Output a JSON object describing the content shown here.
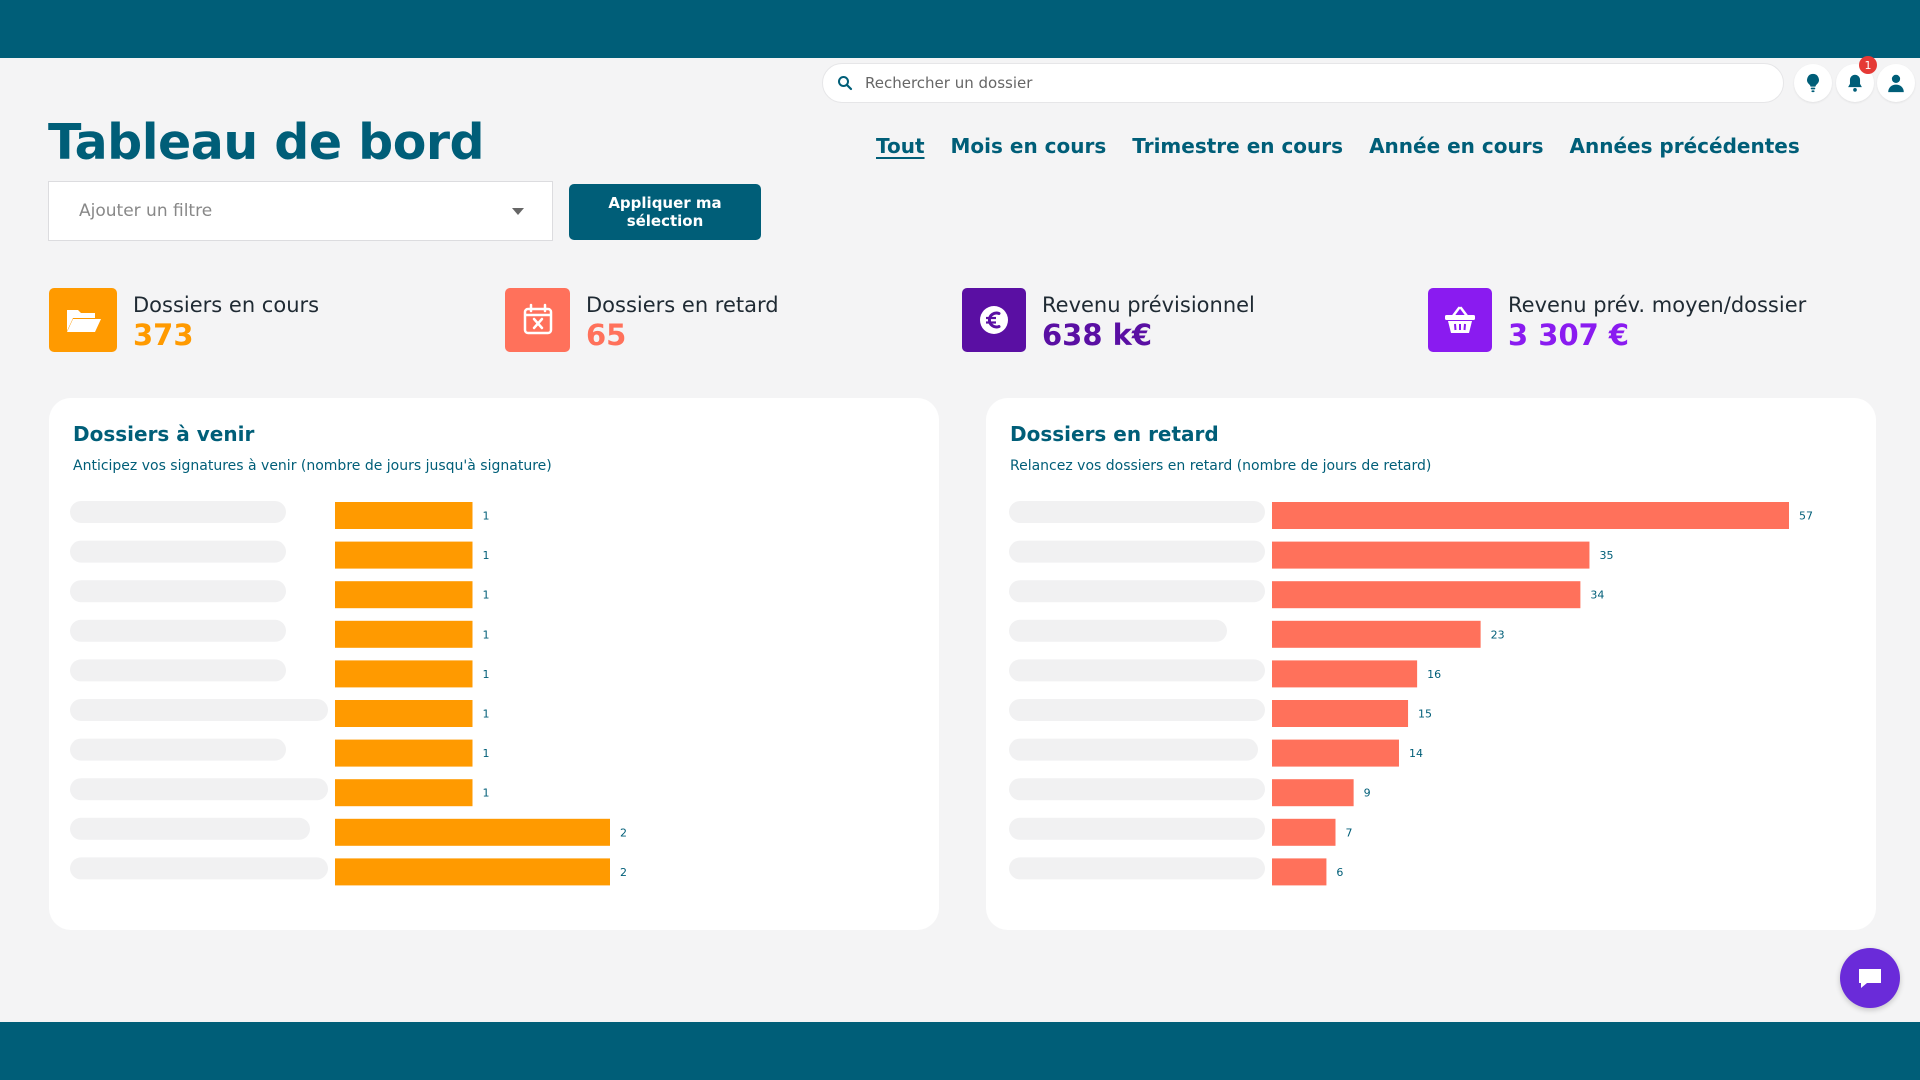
{
  "search": {
    "placeholder": "Rechercher un dossier"
  },
  "header": {
    "notification_count": "1"
  },
  "page": {
    "title": "Tableau de bord"
  },
  "period_tabs": [
    {
      "label": "Tout",
      "active": true
    },
    {
      "label": "Mois en cours",
      "active": false
    },
    {
      "label": "Trimestre en cours",
      "active": false
    },
    {
      "label": "Année en cours",
      "active": false
    },
    {
      "label": "Années précédentes",
      "active": false
    }
  ],
  "filter": {
    "placeholder": "Ajouter un filtre",
    "apply_label": "Appliquer ma sélection"
  },
  "kpis": [
    {
      "label": "Dossiers en cours",
      "value": "373",
      "color": "#ff9a00",
      "icon": "folder-open-icon"
    },
    {
      "label": "Dossiers en retard",
      "value": "65",
      "color": "#ff715b",
      "icon": "calendar-x-icon"
    },
    {
      "label": "Revenu prévisionnel",
      "value": "638 k€",
      "color": "#5a0fa3",
      "icon": "euro-icon"
    },
    {
      "label": "Revenu prév. moyen/dossier",
      "value": "3 307 €",
      "color": "#8a1bf0",
      "icon": "basket-icon"
    }
  ],
  "colors": {
    "primary": "#005e78",
    "upcoming_bar": "#ff9a00",
    "late_bar": "#ff715b",
    "chat": "#6a2bd9"
  },
  "cards": {
    "upcoming": {
      "title": "Dossiers à venir",
      "subtitle": "Anticipez vos signatures à venir (nombre de jours jusqu'à signature)"
    },
    "late": {
      "title": "Dossiers en retard",
      "subtitle": "Relancez vos dossiers en retard (nombre de jours de retard)"
    }
  },
  "chart_data": [
    {
      "type": "bar",
      "orientation": "horizontal",
      "categories_redacted": true,
      "values": [
        1,
        1,
        1,
        1,
        1,
        1,
        1,
        1,
        2,
        2
      ],
      "xlim": [
        0,
        2
      ],
      "color": "#ff9a00"
    },
    {
      "type": "bar",
      "orientation": "horizontal",
      "categories_redacted": true,
      "values": [
        57,
        35,
        34,
        23,
        16,
        15,
        14,
        9,
        7,
        6
      ],
      "xlim": [
        0,
        57
      ],
      "color": "#ff715b"
    }
  ]
}
